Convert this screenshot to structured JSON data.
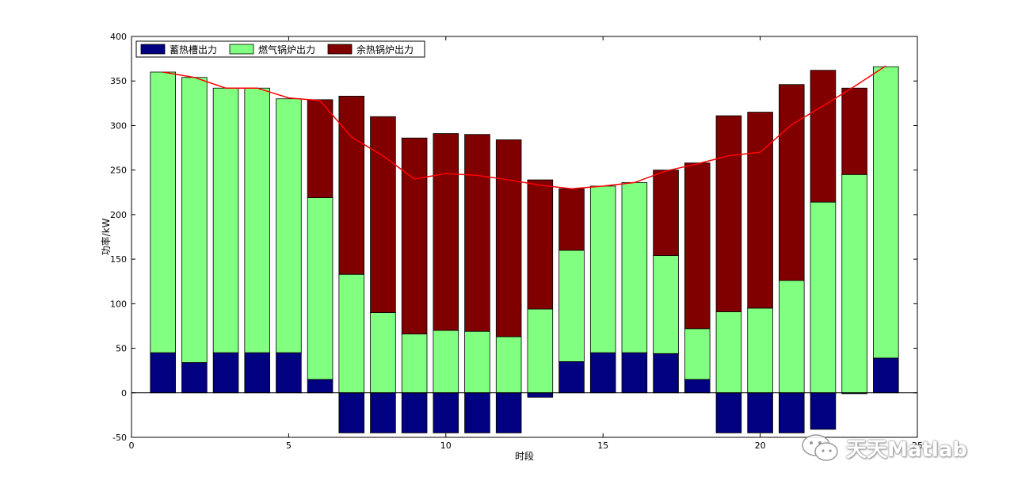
{
  "chart_data": {
    "type": "bar",
    "stacked": true,
    "title": "",
    "xlabel": "时段",
    "ylabel": "功率/kW",
    "xlim": [
      0,
      25
    ],
    "ylim": [
      -50,
      400
    ],
    "xticks": [
      0,
      5,
      10,
      15,
      20,
      25
    ],
    "yticks": [
      -50,
      0,
      50,
      100,
      150,
      200,
      250,
      300,
      350,
      400
    ],
    "grid": false,
    "legend_position": "top-left",
    "x": [
      1,
      2,
      3,
      4,
      5,
      6,
      7,
      8,
      9,
      10,
      11,
      12,
      13,
      14,
      15,
      16,
      17,
      18,
      19,
      20,
      21,
      22,
      23,
      24
    ],
    "series": [
      {
        "name": "蓄热槽出力",
        "color": "#000080",
        "values": [
          45,
          34,
          45,
          45,
          45,
          15,
          -45,
          -45,
          -45,
          -45,
          -45,
          -45,
          -5,
          35,
          45,
          45,
          44,
          15,
          -45,
          -45,
          -45,
          -41,
          -1,
          39
        ]
      },
      {
        "name": "燃气锅炉出力",
        "color": "#80ff80",
        "values": [
          315,
          320,
          297,
          297,
          285,
          204,
          133,
          90,
          66,
          70,
          69,
          63,
          94,
          125,
          187,
          191,
          110,
          57,
          91,
          95,
          126,
          214,
          245,
          327
        ]
      },
      {
        "name": "余热锅炉出力",
        "color": "#800000",
        "values": [
          0,
          0,
          0,
          0,
          0,
          110,
          200,
          220,
          220,
          221,
          221,
          221,
          145,
          69,
          0,
          0,
          96,
          186,
          220,
          220,
          220,
          148,
          97,
          0
        ]
      }
    ],
    "load_line": {
      "color": "#ff0000",
      "values": [
        360,
        354,
        342,
        342,
        331,
        328,
        287,
        266,
        240,
        246,
        244,
        239,
        233,
        229,
        232,
        236,
        249,
        257,
        266,
        270,
        301,
        322,
        344,
        367
      ]
    }
  },
  "watermark": {
    "text": "天天Matlab",
    "icon": "wechat-icon"
  }
}
